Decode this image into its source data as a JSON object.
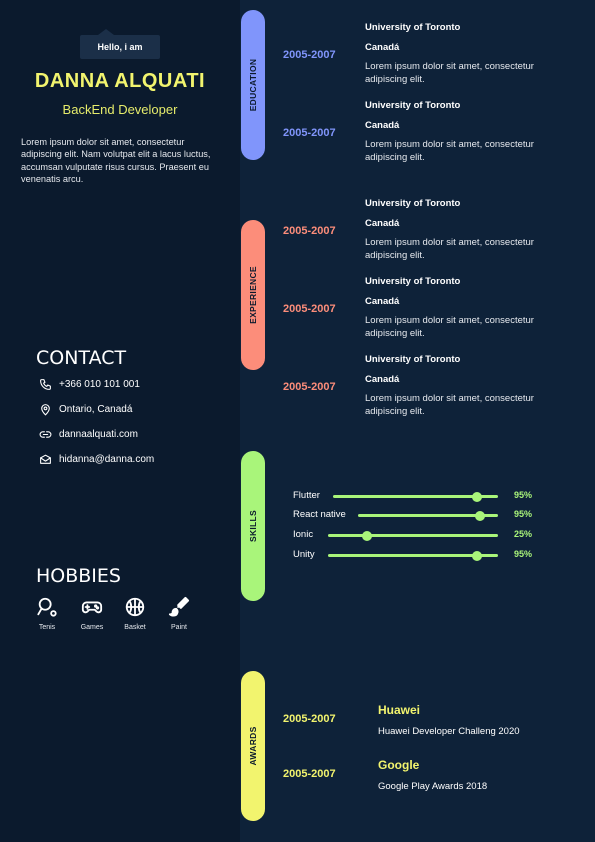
{
  "profile": {
    "greeting": "Hello, i am",
    "name": "DANNA ALQUATI",
    "role": "BackEnd Developer",
    "bio": "Lorem ipsum dolor sit amet, consectetur adipiscing elit. Nam volutpat elit a lacus luctus, accumsan vulputate risus cursus. Praesent eu venenatis arcu."
  },
  "contact": {
    "title": "CONTACT",
    "items": [
      {
        "icon": "phone-icon",
        "text": "+366 010 101 001"
      },
      {
        "icon": "location-pin-icon",
        "text": "Ontario, Canadá"
      },
      {
        "icon": "link-icon",
        "text": "dannaalquati.com"
      },
      {
        "icon": "mail-icon",
        "text": "hidanna@danna.com"
      }
    ]
  },
  "hobbies": {
    "title": "HOBBIES",
    "items": [
      {
        "icon": "tennis-racket-icon",
        "label": "Tenis"
      },
      {
        "icon": "gamepad-icon",
        "label": "Games"
      },
      {
        "icon": "basketball-icon",
        "label": "Basket"
      },
      {
        "icon": "paint-brush-icon",
        "label": "Paint"
      }
    ]
  },
  "sections": {
    "education": {
      "label": "EDUCATION",
      "color": "#8095fb"
    },
    "experience": {
      "label": "EXPERIENCE",
      "color": "#fc8d7a"
    },
    "skills": {
      "label": "SKILLS",
      "color": "#a9f57a"
    },
    "awards": {
      "label": "AWARDS",
      "color": "#f2f46e"
    }
  },
  "education": [
    {
      "years": "2005-2007",
      "school": "University of Toronto",
      "degree": "Canadá",
      "desc": "Lorem ipsum dolor sit amet, consectetur adipiscing elit."
    },
    {
      "years": "2005-2007",
      "school": "University of Toronto",
      "degree": "Canadá",
      "desc": "Lorem ipsum dolor sit amet, consectetur adipiscing elit."
    }
  ],
  "experience": [
    {
      "years": "2005-2007",
      "company": "University of Toronto",
      "place": "Canadá",
      "desc": "Lorem ipsum dolor sit amet, consectetur adipiscing elit."
    },
    {
      "years": "2005-2007",
      "company": "University of Toronto",
      "place": "Canadá",
      "desc": "Lorem ipsum dolor sit amet, consectetur adipiscing elit."
    },
    {
      "years": "2005-2007",
      "company": "University of Toronto",
      "place": "Canadá",
      "desc": "Lorem ipsum dolor sit amet, consectetur adipiscing elit."
    }
  ],
  "skills": [
    {
      "name": "Flutter",
      "percent": "95%",
      "level": 0.95
    },
    {
      "name": "React native",
      "percent": "95%",
      "level": 0.95
    },
    {
      "name": "Ionic",
      "percent": "25%",
      "level": 0.25
    },
    {
      "name": "Unity",
      "percent": "95%",
      "level": 0.95
    }
  ],
  "awards": [
    {
      "years": "2005-2007",
      "title": "Huawei",
      "desc": "Huawei Developer Challeng 2020"
    },
    {
      "years": "2005-2007",
      "title": "Google",
      "desc": "Google Play Awards 2018"
    }
  ]
}
